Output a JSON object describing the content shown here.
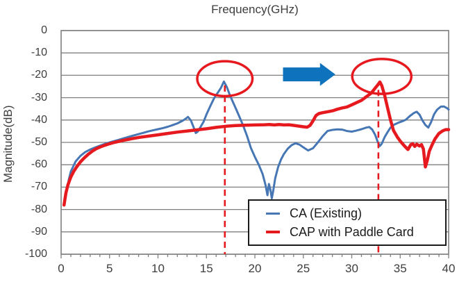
{
  "chart": {
    "title": "Frequency(GHz)",
    "y_axis_label": "Magnitude(dB)"
  },
  "legend": {
    "items": [
      {
        "label": "CA (Existing)",
        "color": "#4677b4",
        "thickness": 3
      },
      {
        "label": "CAP with Paddle Card",
        "color": "#e6191f",
        "thickness": 4
      }
    ]
  },
  "chart_data": {
    "type": "line",
    "title": "Frequency(GHz)",
    "xlabel": "Frequency(GHz)",
    "ylabel": "Magnitude(dB)",
    "xlim": [
      0,
      40
    ],
    "ylim": [
      -100,
      0
    ],
    "x_ticks": [
      0,
      5,
      10,
      15,
      20,
      25,
      30,
      35,
      40
    ],
    "y_ticks": [
      0,
      -10,
      -20,
      -30,
      -40,
      -50,
      -60,
      -70,
      -80,
      -90,
      -100
    ],
    "x_minor_tick_step": 1,
    "grid": "horizontal",
    "grid_color": "#7f7f7f",
    "legend_position": "bottom-right",
    "series": [
      {
        "name": "CA (Existing)",
        "color": "#4677b4",
        "width": 3,
        "points": [
          [
            0.3,
            -78
          ],
          [
            0.5,
            -73
          ],
          [
            0.8,
            -66.5
          ],
          [
            1,
            -63
          ],
          [
            1.5,
            -58.5
          ],
          [
            2,
            -56
          ],
          [
            2.5,
            -54.3
          ],
          [
            3,
            -53.2
          ],
          [
            3.5,
            -52.3
          ],
          [
            4,
            -51.5
          ],
          [
            4.5,
            -50.7
          ],
          [
            5,
            -50
          ],
          [
            5.5,
            -49.4
          ],
          [
            6,
            -48.8
          ],
          [
            6.5,
            -48.1
          ],
          [
            7,
            -47.5
          ],
          [
            7.5,
            -46.9
          ],
          [
            8,
            -46.3
          ],
          [
            8.5,
            -45.7
          ],
          [
            9,
            -45.1
          ],
          [
            9.5,
            -44.6
          ],
          [
            10,
            -44.1
          ],
          [
            10.5,
            -43.6
          ],
          [
            11,
            -43
          ],
          [
            11.5,
            -42.3
          ],
          [
            12,
            -41.5
          ],
          [
            12.5,
            -40.4
          ],
          [
            12.8,
            -39.6
          ],
          [
            13.1,
            -38.6
          ],
          [
            13.4,
            -40.2
          ],
          [
            13.7,
            -43.5
          ],
          [
            13.9,
            -45.8
          ],
          [
            14.1,
            -45.2
          ],
          [
            14.4,
            -43
          ],
          [
            14.7,
            -40.8
          ],
          [
            15,
            -37.5
          ],
          [
            15.4,
            -33.8
          ],
          [
            15.8,
            -30.2
          ],
          [
            16.2,
            -27.6
          ],
          [
            16.5,
            -25.6
          ],
          [
            16.8,
            -22.8
          ],
          [
            17.1,
            -25.2
          ],
          [
            17.4,
            -28.6
          ],
          [
            17.7,
            -31.6
          ],
          [
            18,
            -34.5
          ],
          [
            18.4,
            -38.5
          ],
          [
            18.8,
            -42.6
          ],
          [
            19.2,
            -47.2
          ],
          [
            19.6,
            -52.6
          ],
          [
            20,
            -56.5
          ],
          [
            20.4,
            -60
          ],
          [
            20.8,
            -64.2
          ],
          [
            21.1,
            -69
          ],
          [
            21.3,
            -73.6
          ],
          [
            21.45,
            -68.6
          ],
          [
            21.6,
            -71
          ],
          [
            21.75,
            -75
          ],
          [
            21.9,
            -71.5
          ],
          [
            22.1,
            -66
          ],
          [
            22.4,
            -61
          ],
          [
            22.7,
            -57.6
          ],
          [
            23,
            -55.2
          ],
          [
            23.4,
            -52.8
          ],
          [
            23.8,
            -51.2
          ],
          [
            24.2,
            -50.4
          ],
          [
            24.6,
            -51
          ],
          [
            25,
            -52.2
          ],
          [
            25.5,
            -53.6
          ],
          [
            26,
            -52.6
          ],
          [
            26.5,
            -50
          ],
          [
            27,
            -47.2
          ],
          [
            27.5,
            -44.9
          ],
          [
            28,
            -44.4
          ],
          [
            28.5,
            -44.2
          ],
          [
            29,
            -44.3
          ],
          [
            29.5,
            -44.9
          ],
          [
            30,
            -45.2
          ],
          [
            30.5,
            -44.7
          ],
          [
            31,
            -44.1
          ],
          [
            31.5,
            -43.4
          ],
          [
            31.8,
            -43.1
          ],
          [
            32.1,
            -44.2
          ],
          [
            32.4,
            -46.5
          ],
          [
            32.7,
            -50
          ],
          [
            32.9,
            -51.6
          ],
          [
            33.1,
            -50.6
          ],
          [
            33.4,
            -47.6
          ],
          [
            33.7,
            -45.4
          ],
          [
            34,
            -43.4
          ],
          [
            34.4,
            -42
          ],
          [
            34.8,
            -41.2
          ],
          [
            35.2,
            -40.6
          ],
          [
            35.6,
            -39.8
          ],
          [
            36,
            -38.2
          ],
          [
            36.4,
            -36.9
          ],
          [
            36.7,
            -36.3
          ],
          [
            37,
            -37.6
          ],
          [
            37.3,
            -40.2
          ],
          [
            37.6,
            -42.2
          ],
          [
            37.9,
            -43.4
          ],
          [
            38.2,
            -40.8
          ],
          [
            38.5,
            -37.4
          ],
          [
            38.8,
            -35.4
          ],
          [
            39.2,
            -34
          ],
          [
            39.5,
            -33.9
          ],
          [
            39.8,
            -34.6
          ],
          [
            40,
            -35.3
          ]
        ]
      },
      {
        "name": "CAP with Paddle Card",
        "color": "#e6191f",
        "width": 4.5,
        "points": [
          [
            0.3,
            -78
          ],
          [
            0.5,
            -72.5
          ],
          [
            0.7,
            -69
          ],
          [
            1,
            -65.5
          ],
          [
            1.3,
            -63
          ],
          [
            1.6,
            -61
          ],
          [
            2,
            -58.7
          ],
          [
            2.4,
            -56.9
          ],
          [
            2.8,
            -55.3
          ],
          [
            3.2,
            -54
          ],
          [
            3.6,
            -52.9
          ],
          [
            4,
            -52.1
          ],
          [
            4.5,
            -51.3
          ],
          [
            5,
            -50.6
          ],
          [
            5.5,
            -50
          ],
          [
            6,
            -49.5
          ],
          [
            6.5,
            -49
          ],
          [
            7,
            -48.6
          ],
          [
            7.5,
            -48.2
          ],
          [
            8,
            -47.8
          ],
          [
            9,
            -47.2
          ],
          [
            10,
            -46.6
          ],
          [
            11,
            -46
          ],
          [
            12,
            -45.4
          ],
          [
            13,
            -44.9
          ],
          [
            14,
            -44.4
          ],
          [
            15,
            -43.9
          ],
          [
            16,
            -43.3
          ],
          [
            17,
            -42.8
          ],
          [
            18,
            -42.5
          ],
          [
            19,
            -42.3
          ],
          [
            20,
            -42.2
          ],
          [
            21,
            -42.1
          ],
          [
            21.5,
            -42
          ],
          [
            22,
            -42.2
          ],
          [
            22.5,
            -42
          ],
          [
            23,
            -42.2
          ],
          [
            23.5,
            -42.1
          ],
          [
            24,
            -42.4
          ],
          [
            24.5,
            -42.7
          ],
          [
            25,
            -43
          ],
          [
            25.4,
            -43.2
          ],
          [
            25.7,
            -42.4
          ],
          [
            26,
            -40.4
          ],
          [
            26.3,
            -38
          ],
          [
            26.6,
            -37.1
          ],
          [
            27,
            -36.7
          ],
          [
            27.5,
            -36.3
          ],
          [
            28,
            -35.9
          ],
          [
            28.5,
            -35.2
          ],
          [
            29,
            -34.6
          ],
          [
            29.5,
            -34.2
          ],
          [
            30,
            -33.2
          ],
          [
            30.5,
            -32.2
          ],
          [
            31,
            -31.2
          ],
          [
            31.5,
            -29.6
          ],
          [
            32,
            -28
          ],
          [
            32.4,
            -25.8
          ],
          [
            32.7,
            -24.2
          ],
          [
            32.9,
            -23
          ],
          [
            33.1,
            -24.6
          ],
          [
            33.4,
            -29
          ],
          [
            33.7,
            -34.6
          ],
          [
            34,
            -40
          ],
          [
            34.3,
            -44.6
          ],
          [
            34.7,
            -47.6
          ],
          [
            35,
            -49.4
          ],
          [
            35.4,
            -51.4
          ],
          [
            35.8,
            -53.2
          ],
          [
            36.1,
            -51
          ],
          [
            36.3,
            -50.6
          ],
          [
            36.5,
            -51.8
          ],
          [
            36.7,
            -50.8
          ],
          [
            37,
            -51.6
          ],
          [
            37.2,
            -51
          ],
          [
            37.4,
            -53
          ],
          [
            37.6,
            -61
          ],
          [
            37.8,
            -58
          ],
          [
            38,
            -54
          ],
          [
            38.3,
            -51
          ],
          [
            38.6,
            -48.4
          ],
          [
            39,
            -46
          ],
          [
            39.4,
            -44.8
          ],
          [
            39.7,
            -44.3
          ],
          [
            40,
            -44.3
          ]
        ]
      }
    ],
    "annotations": {
      "ellipses": [
        {
          "name": "peak-highlight-existing",
          "cx_ghz": 16.9,
          "cy_db": -21.5,
          "rx_ghz": 2.85,
          "ry_db": 7.8,
          "color": "#e6191f",
          "stroke_width": 3.5
        },
        {
          "cx_ghz": 33.1,
          "cy_db": -20.5,
          "rx_ghz": 3.05,
          "ry_db": 7.8,
          "color": "#e6191f",
          "stroke_width": 3.5
        }
      ],
      "arrow": {
        "x1_ghz": 22.9,
        "x2_ghz": 28.3,
        "y_db": -19.6,
        "color": "#0f72bd"
      },
      "dashed_vlines": [
        {
          "x_ghz": 16.9,
          "y_top_db": -24.5,
          "y_bottom_db": -100,
          "color": "#e6191f"
        },
        {
          "x_ghz": 32.75,
          "y_top_db": -26.5,
          "y_bottom_db": -100,
          "color": "#e6191f"
        }
      ]
    }
  }
}
